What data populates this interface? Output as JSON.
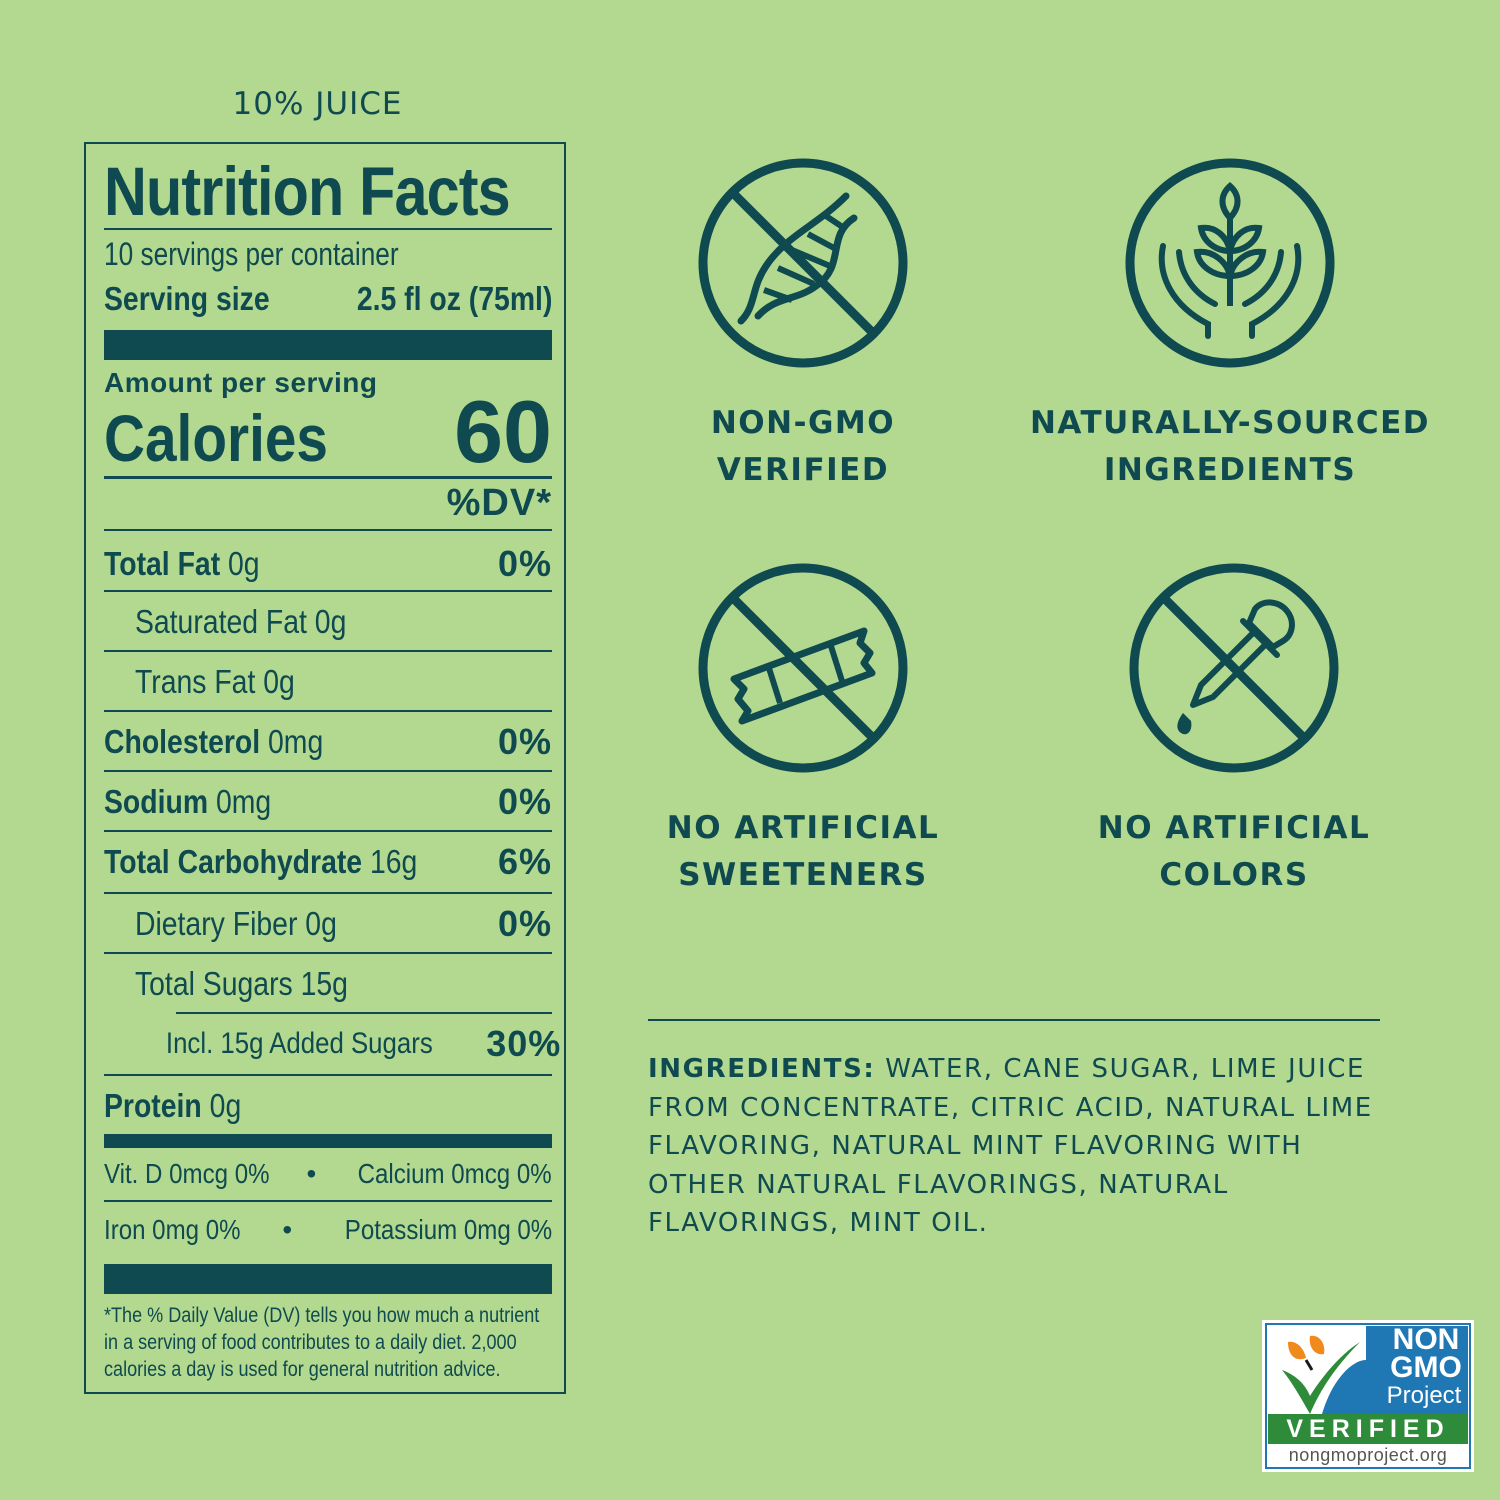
{
  "header": {
    "juice_label": "10% JUICE"
  },
  "nutrition": {
    "title": "Nutrition Facts",
    "servings": "10 servings per container",
    "serving_size_label": "Serving size",
    "serving_size_value": "2.5 fl oz (75ml)",
    "amount_label": "Amount per serving",
    "calories_label": "Calories",
    "calories_value": "60",
    "dv_header": "%DV*",
    "rows": [
      {
        "name": "Total Fat",
        "amount": "0g",
        "dv": "0%"
      },
      {
        "name": "Saturated Fat 0g",
        "amount": "",
        "dv": ""
      },
      {
        "name": "Trans Fat 0g",
        "amount": "",
        "dv": ""
      },
      {
        "name": "Cholesterol",
        "amount": "0mg",
        "dv": "0%"
      },
      {
        "name": "Sodium",
        "amount": "0mg",
        "dv": "0%"
      },
      {
        "name": "Total Carbohydrate",
        "amount": "16g",
        "dv": "6%"
      },
      {
        "name": "Dietary Fiber 0g",
        "amount": "",
        "dv": "0%"
      },
      {
        "name": "Total Sugars 15g",
        "amount": "",
        "dv": ""
      },
      {
        "name": "Incl. 15g Added Sugars",
        "amount": "",
        "dv": "30%"
      },
      {
        "name": "Protein",
        "amount": "0g",
        "dv": ""
      }
    ],
    "micros": [
      {
        "left": "Vit. D 0mcg 0%",
        "right": "Calcium 0mcg 0%"
      },
      {
        "left": "Iron 0mg 0%",
        "right": "Potassium 0mg 0%"
      }
    ],
    "separator": "•",
    "footnote": "*The % Daily Value (DV) tells you how much a nutrient in a serving of food contributes to a daily diet. 2,000 calories a day is used for general nutrition advice."
  },
  "claims": [
    {
      "line1": "NON-GMO",
      "line2": "VERIFIED",
      "icon": "dna-crossed-icon"
    },
    {
      "line1": "NATURALLY-SOURCED",
      "line2": "INGREDIENTS",
      "icon": "hands-plant-icon"
    },
    {
      "line1": "NO ARTIFICIAL",
      "line2": "SWEETENERS",
      "icon": "sweetener-packet-crossed-icon"
    },
    {
      "line1": "NO ARTIFICIAL",
      "line2": "COLORS",
      "icon": "dropper-crossed-icon"
    }
  ],
  "ingredients": {
    "label": "INGREDIENTS:",
    "text": "WATER, CANE SUGAR, LIME JUICE FROM CONCENTRATE, CITRIC ACID, NATURAL LIME FLAVORING, NATURAL MINT FLAVORING WITH OTHER NATURAL FLAVORINGS, NATURAL FLAVORINGS, MINT OIL."
  },
  "badge": {
    "line1": "NON",
    "line2": "GMO",
    "line3": "Project",
    "verified": "VERIFIED",
    "url": "nongmoproject.org"
  },
  "colors": {
    "background": "#b3d88f",
    "ink": "#0e4a4f",
    "badge_blue": "#1f77b4",
    "badge_green": "#2e8b3a",
    "badge_orange": "#f08a1c"
  }
}
